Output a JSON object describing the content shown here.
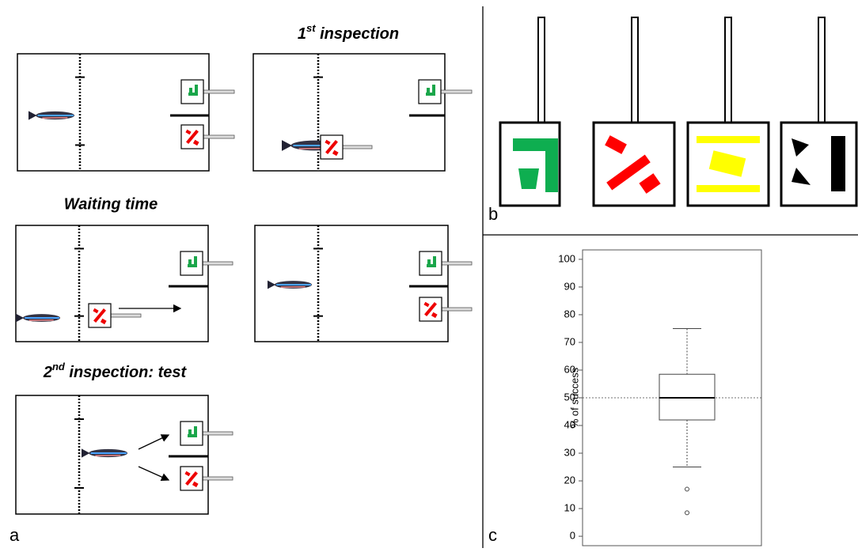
{
  "panel_labels": {
    "a": "a",
    "b": "b",
    "c": "c"
  },
  "step_titles": {
    "first_inspection": {
      "number": "1",
      "suffix": "st",
      "rest": " inspection"
    },
    "waiting_time": "Waiting time",
    "second_inspection": {
      "number": "2",
      "suffix": "nd",
      "rest": " inspection: test"
    }
  },
  "chart_data": {
    "type": "box",
    "ylabel": "% of success",
    "ylim": [
      -3.4,
      103.4
    ],
    "yticks": [
      0,
      10,
      20,
      30,
      40,
      50,
      60,
      70,
      80,
      90,
      100
    ],
    "box": {
      "min": 25,
      "q1": 42,
      "median": 50,
      "q3": 58.5,
      "max": 75,
      "outliers": [
        17,
        8.5
      ]
    },
    "reference_line": 50
  }
}
